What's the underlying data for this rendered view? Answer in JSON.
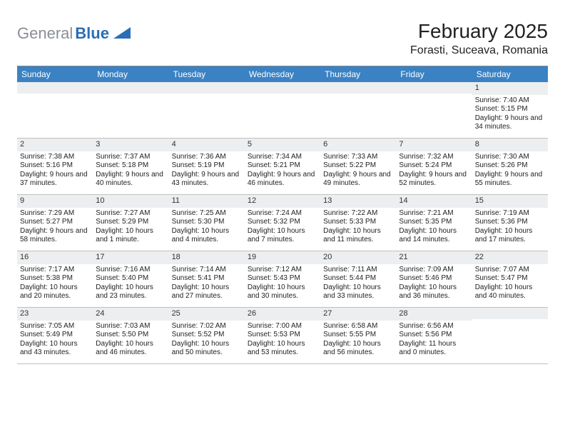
{
  "logo": {
    "text_gray": "General",
    "text_blue": "Blue",
    "shape_color": "#2a6db8"
  },
  "header": {
    "month_title": "February 2025",
    "location": "Forasti, Suceava, Romania"
  },
  "colors": {
    "header_bar": "#3a82c4",
    "daynum_bg": "#eceef0",
    "row_border": "#bfbfbf",
    "top_border": "#888888",
    "text": "#222222",
    "logo_gray": "#8a8f94",
    "logo_blue": "#2a6db8",
    "bg": "#ffffff"
  },
  "weekdays": [
    "Sunday",
    "Monday",
    "Tuesday",
    "Wednesday",
    "Thursday",
    "Friday",
    "Saturday"
  ],
  "weeks": [
    [
      {
        "num": "",
        "lines": []
      },
      {
        "num": "",
        "lines": []
      },
      {
        "num": "",
        "lines": []
      },
      {
        "num": "",
        "lines": []
      },
      {
        "num": "",
        "lines": []
      },
      {
        "num": "",
        "lines": []
      },
      {
        "num": "1",
        "lines": [
          "Sunrise: 7:40 AM",
          "Sunset: 5:15 PM",
          "Daylight: 9 hours and 34 minutes."
        ]
      }
    ],
    [
      {
        "num": "2",
        "lines": [
          "Sunrise: 7:38 AM",
          "Sunset: 5:16 PM",
          "Daylight: 9 hours and 37 minutes."
        ]
      },
      {
        "num": "3",
        "lines": [
          "Sunrise: 7:37 AM",
          "Sunset: 5:18 PM",
          "Daylight: 9 hours and 40 minutes."
        ]
      },
      {
        "num": "4",
        "lines": [
          "Sunrise: 7:36 AM",
          "Sunset: 5:19 PM",
          "Daylight: 9 hours and 43 minutes."
        ]
      },
      {
        "num": "5",
        "lines": [
          "Sunrise: 7:34 AM",
          "Sunset: 5:21 PM",
          "Daylight: 9 hours and 46 minutes."
        ]
      },
      {
        "num": "6",
        "lines": [
          "Sunrise: 7:33 AM",
          "Sunset: 5:22 PM",
          "Daylight: 9 hours and 49 minutes."
        ]
      },
      {
        "num": "7",
        "lines": [
          "Sunrise: 7:32 AM",
          "Sunset: 5:24 PM",
          "Daylight: 9 hours and 52 minutes."
        ]
      },
      {
        "num": "8",
        "lines": [
          "Sunrise: 7:30 AM",
          "Sunset: 5:26 PM",
          "Daylight: 9 hours and 55 minutes."
        ]
      }
    ],
    [
      {
        "num": "9",
        "lines": [
          "Sunrise: 7:29 AM",
          "Sunset: 5:27 PM",
          "Daylight: 9 hours and 58 minutes."
        ]
      },
      {
        "num": "10",
        "lines": [
          "Sunrise: 7:27 AM",
          "Sunset: 5:29 PM",
          "Daylight: 10 hours and 1 minute."
        ]
      },
      {
        "num": "11",
        "lines": [
          "Sunrise: 7:25 AM",
          "Sunset: 5:30 PM",
          "Daylight: 10 hours and 4 minutes."
        ]
      },
      {
        "num": "12",
        "lines": [
          "Sunrise: 7:24 AM",
          "Sunset: 5:32 PM",
          "Daylight: 10 hours and 7 minutes."
        ]
      },
      {
        "num": "13",
        "lines": [
          "Sunrise: 7:22 AM",
          "Sunset: 5:33 PM",
          "Daylight: 10 hours and 11 minutes."
        ]
      },
      {
        "num": "14",
        "lines": [
          "Sunrise: 7:21 AM",
          "Sunset: 5:35 PM",
          "Daylight: 10 hours and 14 minutes."
        ]
      },
      {
        "num": "15",
        "lines": [
          "Sunrise: 7:19 AM",
          "Sunset: 5:36 PM",
          "Daylight: 10 hours and 17 minutes."
        ]
      }
    ],
    [
      {
        "num": "16",
        "lines": [
          "Sunrise: 7:17 AM",
          "Sunset: 5:38 PM",
          "Daylight: 10 hours and 20 minutes."
        ]
      },
      {
        "num": "17",
        "lines": [
          "Sunrise: 7:16 AM",
          "Sunset: 5:40 PM",
          "Daylight: 10 hours and 23 minutes."
        ]
      },
      {
        "num": "18",
        "lines": [
          "Sunrise: 7:14 AM",
          "Sunset: 5:41 PM",
          "Daylight: 10 hours and 27 minutes."
        ]
      },
      {
        "num": "19",
        "lines": [
          "Sunrise: 7:12 AM",
          "Sunset: 5:43 PM",
          "Daylight: 10 hours and 30 minutes."
        ]
      },
      {
        "num": "20",
        "lines": [
          "Sunrise: 7:11 AM",
          "Sunset: 5:44 PM",
          "Daylight: 10 hours and 33 minutes."
        ]
      },
      {
        "num": "21",
        "lines": [
          "Sunrise: 7:09 AM",
          "Sunset: 5:46 PM",
          "Daylight: 10 hours and 36 minutes."
        ]
      },
      {
        "num": "22",
        "lines": [
          "Sunrise: 7:07 AM",
          "Sunset: 5:47 PM",
          "Daylight: 10 hours and 40 minutes."
        ]
      }
    ],
    [
      {
        "num": "23",
        "lines": [
          "Sunrise: 7:05 AM",
          "Sunset: 5:49 PM",
          "Daylight: 10 hours and 43 minutes."
        ]
      },
      {
        "num": "24",
        "lines": [
          "Sunrise: 7:03 AM",
          "Sunset: 5:50 PM",
          "Daylight: 10 hours and 46 minutes."
        ]
      },
      {
        "num": "25",
        "lines": [
          "Sunrise: 7:02 AM",
          "Sunset: 5:52 PM",
          "Daylight: 10 hours and 50 minutes."
        ]
      },
      {
        "num": "26",
        "lines": [
          "Sunrise: 7:00 AM",
          "Sunset: 5:53 PM",
          "Daylight: 10 hours and 53 minutes."
        ]
      },
      {
        "num": "27",
        "lines": [
          "Sunrise: 6:58 AM",
          "Sunset: 5:55 PM",
          "Daylight: 10 hours and 56 minutes."
        ]
      },
      {
        "num": "28",
        "lines": [
          "Sunrise: 6:56 AM",
          "Sunset: 5:56 PM",
          "Daylight: 11 hours and 0 minutes."
        ]
      },
      {
        "num": "",
        "lines": []
      }
    ]
  ]
}
